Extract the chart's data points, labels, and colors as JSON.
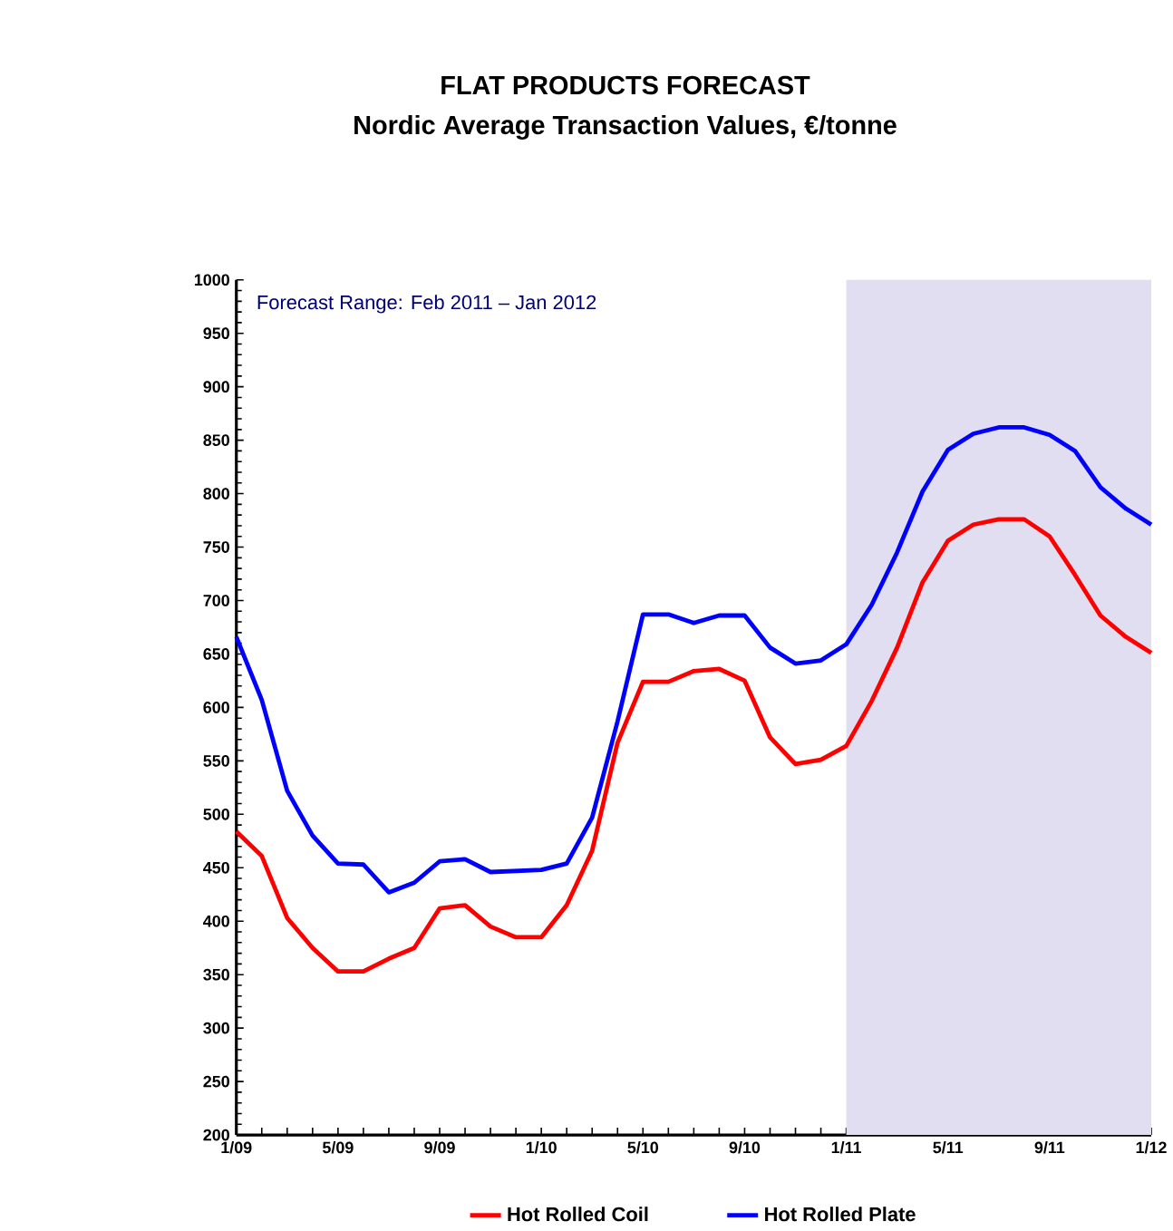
{
  "chart_data": {
    "type": "line",
    "title": "FLAT PRODUCTS FORECAST",
    "subtitle": "Nordic Average Transaction Values, €/tonne",
    "annotations": [
      "Forecast Range: Feb 2011 – Jan 2012"
    ],
    "x": [
      "2009-01",
      "2009-02",
      "2009-03",
      "2009-04",
      "2009-05",
      "2009-06",
      "2009-07",
      "2009-08",
      "2009-09",
      "2009-10",
      "2009-11",
      "2009-12",
      "2010-01",
      "2010-02",
      "2010-03",
      "2010-04",
      "2010-05",
      "2010-06",
      "2010-07",
      "2010-08",
      "2010-09",
      "2010-10",
      "2010-11",
      "2010-12",
      "2011-01",
      "2011-02",
      "2011-03",
      "2011-04",
      "2011-05",
      "2011-06",
      "2011-07",
      "2011-08",
      "2011-09",
      "2011-10",
      "2011-11",
      "2011-12",
      "2012-01"
    ],
    "series": [
      {
        "name": "Hot Rolled Coil",
        "color": "#ff0000",
        "values": [
          484,
          461,
          403,
          375,
          353,
          353,
          365,
          375,
          412,
          415,
          395,
          385,
          385,
          415,
          466,
          567,
          624,
          624,
          634,
          636,
          625,
          572,
          547,
          551,
          564,
          606,
          656,
          717,
          756,
          771,
          776,
          776,
          760,
          724,
          686,
          666,
          651
        ]
      },
      {
        "name": "Hot Rolled Plate",
        "color": "#0000ff",
        "values": [
          666,
          607,
          522,
          480,
          454,
          453,
          427,
          436,
          456,
          458,
          446,
          447,
          448,
          454,
          497,
          587,
          687,
          687,
          679,
          686,
          686,
          656,
          641,
          644,
          659,
          696,
          745,
          802,
          841,
          856,
          862,
          862,
          855,
          840,
          806,
          786,
          771
        ]
      }
    ],
    "xlim": [
      "2009-01",
      "2012-01"
    ],
    "xticks": [
      {
        "value": "2009-01",
        "label": "1/09"
      },
      {
        "value": "2009-02",
        "label": null
      },
      {
        "value": "2009-03",
        "label": null
      },
      {
        "value": "2009-04",
        "label": null
      },
      {
        "value": "2009-05",
        "label": "5/09"
      },
      {
        "value": "2009-06",
        "label": null
      },
      {
        "value": "2009-07",
        "label": null
      },
      {
        "value": "2009-08",
        "label": null
      },
      {
        "value": "2009-09",
        "label": "9/09"
      },
      {
        "value": "2009-10",
        "label": null
      },
      {
        "value": "2009-11",
        "label": null
      },
      {
        "value": "2009-12",
        "label": null
      },
      {
        "value": "2010-01",
        "label": "1/10"
      },
      {
        "value": "2010-02",
        "label": null
      },
      {
        "value": "2010-03",
        "label": null
      },
      {
        "value": "2010-04",
        "label": null
      },
      {
        "value": "2010-05",
        "label": "5/10"
      },
      {
        "value": "2010-06",
        "label": null
      },
      {
        "value": "2010-07",
        "label": null
      },
      {
        "value": "2010-08",
        "label": null
      },
      {
        "value": "2010-09",
        "label": "9/10"
      },
      {
        "value": "2010-10",
        "label": null
      },
      {
        "value": "2010-11",
        "label": null
      },
      {
        "value": "2010-12",
        "label": null
      },
      {
        "value": "2011-01",
        "label": "1/11"
      },
      {
        "value": "2011-02",
        "label": null
      },
      {
        "value": "2011-03",
        "label": null
      },
      {
        "value": "2011-04",
        "label": null
      },
      {
        "value": "2011-05",
        "label": "5/11"
      },
      {
        "value": "2011-06",
        "label": null
      },
      {
        "value": "2011-07",
        "label": null
      },
      {
        "value": "2011-08",
        "label": null
      },
      {
        "value": "2011-09",
        "label": "9/11"
      },
      {
        "value": "2011-10",
        "label": null
      },
      {
        "value": "2011-11",
        "label": null
      },
      {
        "value": "2011-12",
        "label": null
      },
      {
        "value": "2012-01",
        "label": "1/12"
      }
    ],
    "ylim": [
      200,
      1000
    ],
    "yticks": [
      200,
      250,
      300,
      350,
      400,
      450,
      500,
      550,
      600,
      650,
      700,
      750,
      800,
      850,
      900,
      950,
      1000
    ],
    "bands": [
      {
        "axis": "x",
        "from": "2011-01",
        "to": "2012-01",
        "color": "#e0def0"
      }
    ],
    "legend": "bottom",
    "marker": "none",
    "line_style": "solid",
    "grid": false
  }
}
